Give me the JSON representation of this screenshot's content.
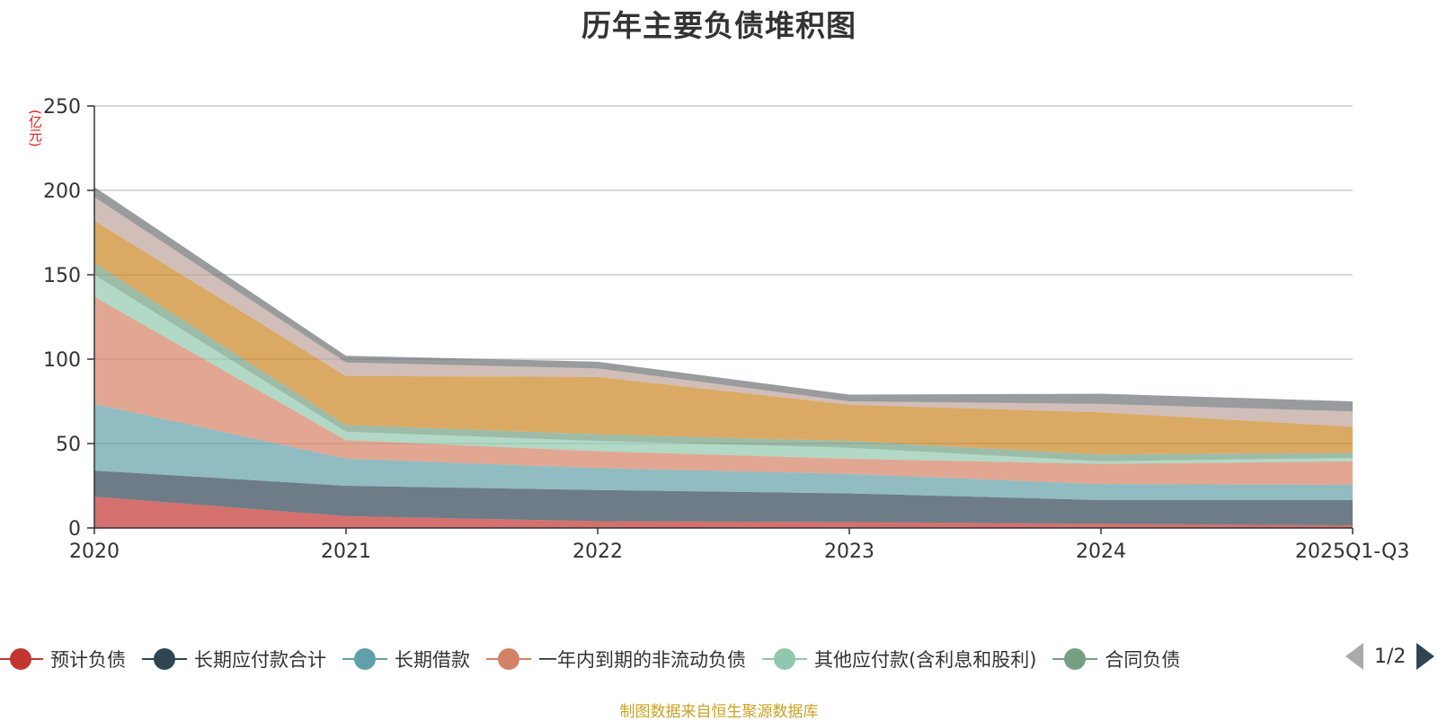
{
  "chart_title": "历年主要负债堆积图",
  "unit_label": "(亿元)",
  "source_text": "制图数据来自恒生聚源数据库",
  "pager_text": "1/2",
  "legend": [
    {
      "name": "预计负债",
      "color": "#c23531"
    },
    {
      "name": "长期应付款合计",
      "color": "#2f4554"
    },
    {
      "name": "长期借款",
      "color": "#61a0a8"
    },
    {
      "name": "一年内到期的非流动负债",
      "color": "#d48265"
    },
    {
      "name": "其他应付款(含利息和股利)",
      "color": "#91c7ae"
    },
    {
      "name": "合同负债",
      "color": "#749f83"
    }
  ],
  "chart_data": {
    "type": "area",
    "stacked": true,
    "title": "历年主要负债堆积图",
    "ylabel": "(亿元)",
    "categories": [
      "2020",
      "2021",
      "2022",
      "2023",
      "2024",
      "2025Q1-Q3"
    ],
    "ylim": [
      0,
      250
    ],
    "yticks": [
      0,
      50,
      100,
      150,
      200,
      250
    ],
    "grid": true,
    "legend_position": "bottom",
    "series": [
      {
        "name": "预计负债",
        "color": "#c23531",
        "values": [
          18.5,
          7,
          4,
          3.5,
          2.5,
          1.5
        ]
      },
      {
        "name": "长期应付款合计",
        "color": "#2f4554",
        "values": [
          15.5,
          18,
          18.5,
          17,
          14,
          15
        ]
      },
      {
        "name": "长期借款",
        "color": "#61a0a8",
        "values": [
          39.5,
          16,
          13,
          11.5,
          9.5,
          9
        ]
      },
      {
        "name": "一年内到期的非流动负债",
        "color": "#d48265",
        "values": [
          63.5,
          11,
          10,
          9,
          12,
          14
        ]
      },
      {
        "name": "其他应付款(含利息和股利)",
        "color": "#91c7ae",
        "values": [
          13,
          5,
          6,
          6.5,
          1.5,
          2
        ]
      },
      {
        "name": "合同负债",
        "color": "#749f83",
        "values": [
          7,
          4,
          4,
          4,
          4,
          3
        ]
      },
      {
        "color": "#ca8622",
        "values": [
          25,
          29,
          34,
          21.5,
          25,
          15.5
        ]
      },
      {
        "color": "#bda29a",
        "values": [
          14,
          8,
          5,
          2,
          5,
          9
        ]
      },
      {
        "color": "#6e7074",
        "values": [
          6,
          4,
          4,
          4,
          6,
          6
        ]
      }
    ]
  }
}
